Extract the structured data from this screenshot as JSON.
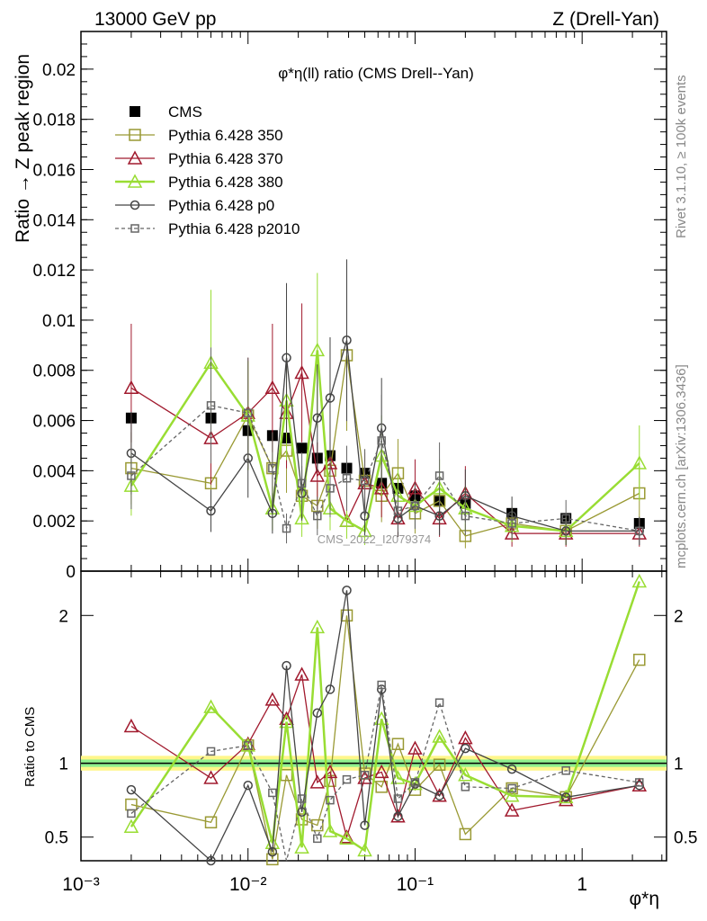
{
  "header": {
    "left": "13000 GeV pp",
    "right": "Z (Drell-Yan)"
  },
  "side": {
    "rivet": "Rivet 3.1.10, ≥ 100k events",
    "mcplots": "mcplots.cern.ch [arXiv:1306.3436]"
  },
  "chart_data": [
    {
      "type": "line",
      "title": "φ*η(ll) ratio (CMS Drell--Yan)",
      "ylabel": "Ratio → Z peak region",
      "watermark": "CMS_2022_I2079374",
      "xscale": "log",
      "xlim": [
        0.001,
        3.2
      ],
      "ylim": [
        0,
        0.0215
      ],
      "yticks": [
        0,
        0.002,
        0.004,
        0.006,
        0.008,
        0.01,
        0.012,
        0.014,
        0.016,
        0.018,
        0.02
      ],
      "ytick_labels": [
        "0",
        "0.002",
        "0.004",
        "0.006",
        "0.008",
        "0.01",
        "0.012",
        "0.014",
        "0.016",
        "0.018",
        "0.02"
      ],
      "legend_position": "top-left",
      "x": [
        0.002,
        0.006,
        0.01,
        0.014,
        0.017,
        0.021,
        0.026,
        0.031,
        0.039,
        0.05,
        0.063,
        0.079,
        0.1,
        0.14,
        0.2,
        0.38,
        0.8,
        2.2
      ],
      "series": [
        {
          "name": "CMS",
          "color": "#000000",
          "marker": "filled-square",
          "values": [
            0.0061,
            0.0061,
            0.0056,
            0.0054,
            0.0053,
            0.0049,
            0.0045,
            0.0046,
            0.0041,
            0.0039,
            0.0035,
            0.0033,
            0.003,
            0.0028,
            0.0027,
            0.0023,
            0.0021,
            0.0019
          ]
        },
        {
          "name": "Pythia 6.428 350",
          "color": "#999933",
          "marker": "open-square",
          "values": [
            0.0041,
            0.0035,
            0.0062,
            0.0041,
            0.0048,
            0.003,
            0.0026,
            0.004,
            0.0086,
            0.0036,
            0.003,
            0.0039,
            0.0023,
            0.0028,
            0.0014,
            0.0019,
            0.0016,
            0.0031
          ]
        },
        {
          "name": "Pythia 6.428 370",
          "color": "#a11a2e",
          "marker": "open-triangle",
          "values": [
            0.0073,
            0.0053,
            0.0063,
            0.0073,
            0.0063,
            0.0079,
            0.0038,
            0.0043,
            0.002,
            0.0035,
            0.0033,
            0.0021,
            0.0033,
            0.0021,
            0.0031,
            0.0015,
            0.0015,
            0.0015
          ]
        },
        {
          "name": "Pythia 6.428 380",
          "color": "#99dd33",
          "marker": "open-triangle",
          "values": [
            0.0034,
            0.0083,
            0.0062,
            0.0025,
            0.0068,
            0.0021,
            0.0088,
            0.0025,
            0.002,
            0.0016,
            0.0046,
            0.003,
            0.0026,
            0.0033,
            0.0025,
            0.0018,
            0.0016,
            0.0043
          ]
        },
        {
          "name": "Pythia 6.428 p0",
          "color": "#444444",
          "marker": "open-circle",
          "values": [
            0.0047,
            0.0024,
            0.0045,
            0.0023,
            0.0085,
            0.0031,
            0.0061,
            0.0069,
            0.0092,
            0.0022,
            0.0057,
            0.0021,
            0.0026,
            0.0022,
            0.003,
            0.0022,
            0.0016,
            0.0016
          ]
        },
        {
          "name": "Pythia 6.428 p2010",
          "color": "#666666",
          "marker": "open-square-dashed",
          "values": [
            0.0038,
            0.0066,
            0.0063,
            0.0041,
            0.0017,
            0.0035,
            0.0022,
            0.0033,
            0.0037,
            0.0036,
            0.0052,
            0.0024,
            0.0026,
            0.0038,
            0.0022,
            0.0019,
            0.0021,
            0.0016
          ]
        }
      ]
    },
    {
      "type": "line",
      "ylabel": "Ratio to CMS",
      "xlabel": "φ*η",
      "xscale": "log",
      "xlim": [
        0.001,
        3.2
      ],
      "ylim": [
        0.34,
        2.3
      ],
      "yticks": [
        0.5,
        1,
        2
      ],
      "ytick_labels": [
        "0.5",
        "1",
        "2"
      ],
      "xticks": [
        0.001,
        0.01,
        0.1,
        1
      ],
      "xtick_labels": [
        "10⁻³",
        "10⁻²",
        "10⁻¹",
        "1"
      ],
      "x": [
        0.002,
        0.006,
        0.01,
        0.014,
        0.017,
        0.021,
        0.026,
        0.031,
        0.039,
        0.05,
        0.063,
        0.079,
        0.1,
        0.14,
        0.2,
        0.38,
        0.8,
        2.2
      ],
      "series": [
        {
          "name": "Pythia 6.428 350",
          "color": "#999933",
          "values": [
            0.72,
            0.6,
            1.12,
            0.35,
            0.92,
            0.62,
            0.58,
            0.88,
            2.0,
            0.93,
            0.84,
            1.13,
            0.82,
            0.99,
            0.52,
            0.83,
            0.77,
            1.7
          ]
        },
        {
          "name": "Pythia 6.428 370",
          "color": "#a11a2e",
          "values": [
            1.25,
            0.9,
            1.13,
            1.43,
            1.3,
            1.6,
            0.87,
            0.94,
            0.5,
            0.9,
            0.94,
            0.64,
            1.1,
            0.78,
            1.17,
            0.68,
            0.75,
            0.85
          ]
        },
        {
          "name": "Pythia 6.428 380",
          "color": "#99dd33",
          "values": [
            0.57,
            1.38,
            1.12,
            0.46,
            1.28,
            0.43,
            1.92,
            0.54,
            0.49,
            0.41,
            1.3,
            0.9,
            0.86,
            1.18,
            0.92,
            0.78,
            0.77,
            2.23
          ]
        },
        {
          "name": "Pythia 6.428 p0",
          "color": "#444444",
          "values": [
            0.82,
            0.34,
            0.85,
            0.4,
            1.66,
            0.67,
            1.34,
            1.5,
            2.17,
            0.58,
            1.5,
            0.64,
            0.86,
            0.78,
            1.1,
            0.96,
            0.77,
            0.85
          ]
        },
        {
          "name": "Pythia 6.428 p2010",
          "color": "#666666",
          "values": [
            0.66,
            1.08,
            1.12,
            0.8,
            0.32,
            0.76,
            0.49,
            0.75,
            0.89,
            0.92,
            1.53,
            0.76,
            0.87,
            1.41,
            0.84,
            0.83,
            0.95,
            0.87
          ]
        }
      ]
    }
  ]
}
